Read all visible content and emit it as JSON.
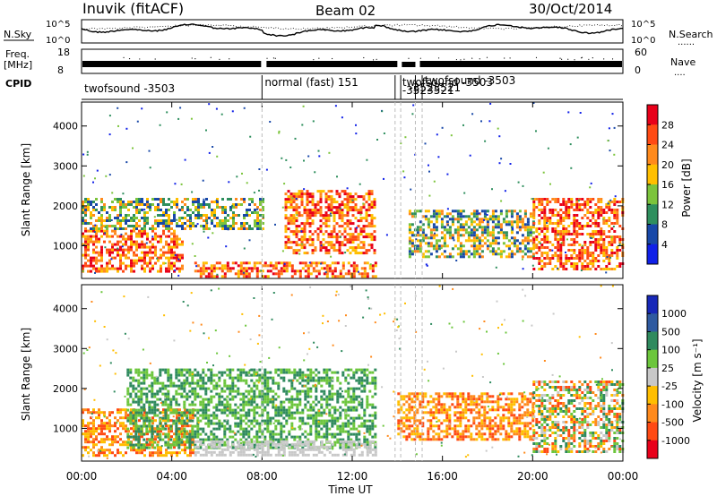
{
  "header": {
    "station": "Inuvik (fitACF)",
    "beam": "Beam 02",
    "date": "30/Oct/2014"
  },
  "nsky_panel": {
    "left_label": "N.Sky",
    "right_label": "N.Search",
    "right_key": "......",
    "left_ticks": [
      "10^5",
      "10^0"
    ],
    "right_ticks": [
      "10^5",
      "10^0"
    ]
  },
  "freq_panel": {
    "left_label_1": "Freq.",
    "left_label_2": "[MHz]",
    "right_label": "Nave",
    "right_key": "....",
    "left_ticks": [
      "18",
      "8"
    ],
    "right_ticks": [
      "60",
      "0"
    ]
  },
  "cpid_panel": {
    "label": "CPID",
    "segments": [
      {
        "text": "twofsound -3503",
        "start_h": 0
      },
      {
        "text": "normal (fast) 151",
        "start_h": 8
      },
      {
        "text": "twofsound -3503",
        "start_h": 14.1
      },
      {
        "text": "-3523521",
        "start_h": 14.1
      },
      {
        "text": "twofsound -3503",
        "start_h": 15.1
      },
      {
        "text": "-3523521",
        "start_h": 15.1
      }
    ],
    "dividers_h": [
      8,
      13.9,
      14.15,
      14.8,
      15.1
    ]
  },
  "chart_data": [
    {
      "type": "heatmap",
      "name": "power",
      "ylabel": "Slant Range [km]",
      "yticks": [
        1000,
        2000,
        3000,
        4000
      ],
      "ylim": [
        180,
        4600
      ],
      "xlim": [
        0,
        24
      ],
      "colorbar": {
        "label": "Power [dB]",
        "ticks": [
          "28",
          "24",
          "20",
          "16",
          "12",
          "8",
          "4"
        ],
        "colors": [
          "#e8001a",
          "#ff4a14",
          "#ff8a1c",
          "#ffbf00",
          "#7cc43c",
          "#2f8f5e",
          "#1848a8",
          "#1020e8"
        ]
      },
      "bands": [
        {
          "t0": 0,
          "t1": 4.5,
          "r0": 350,
          "r1": 1400,
          "level": "high"
        },
        {
          "t0": 0,
          "t1": 8,
          "r0": 1400,
          "r1": 2200,
          "level": "mid"
        },
        {
          "t0": 5,
          "t1": 13,
          "r0": 200,
          "r1": 600,
          "level": "high"
        },
        {
          "t0": 9,
          "t1": 13,
          "r0": 800,
          "r1": 2400,
          "level": "high"
        },
        {
          "t0": 14.5,
          "t1": 20,
          "r0": 700,
          "r1": 1900,
          "level": "mid"
        },
        {
          "t0": 20,
          "t1": 24,
          "r0": 400,
          "r1": 2200,
          "level": "high"
        }
      ]
    },
    {
      "type": "heatmap",
      "name": "velocity",
      "ylabel": "Slant Range [km]",
      "yticks": [
        1000,
        2000,
        3000,
        4000
      ],
      "ylim": [
        180,
        4600
      ],
      "xlim": [
        0,
        24
      ],
      "xticks": [
        "00:00",
        "04:00",
        "08:00",
        "12:00",
        "16:00",
        "20:00",
        "00:00"
      ],
      "xlabel": "Time UT",
      "colorbar": {
        "label": "Velocity [m s⁻¹]",
        "ticks": [
          "1000",
          "500",
          "100",
          "25",
          "-25",
          "-100",
          "-500",
          "-1000"
        ],
        "colors": [
          "#1828b8",
          "#2f5aa0",
          "#2f8a5e",
          "#6cc63c",
          "#c8c8c8",
          "#ffbe00",
          "#ff8a1c",
          "#ff4a14",
          "#e8001a"
        ]
      },
      "bands": [
        {
          "t0": 0,
          "t1": 5,
          "r0": 300,
          "r1": 1500,
          "level": "neg"
        },
        {
          "t0": 2,
          "t1": 13,
          "r0": 500,
          "r1": 2500,
          "level": "pos"
        },
        {
          "t0": 5,
          "t1": 13,
          "r0": 300,
          "r1": 700,
          "level": "zero"
        },
        {
          "t0": 14,
          "t1": 20,
          "r0": 700,
          "r1": 1900,
          "level": "neg"
        },
        {
          "t0": 20,
          "t1": 24,
          "r0": 400,
          "r1": 2200,
          "level": "mixed"
        }
      ]
    }
  ]
}
